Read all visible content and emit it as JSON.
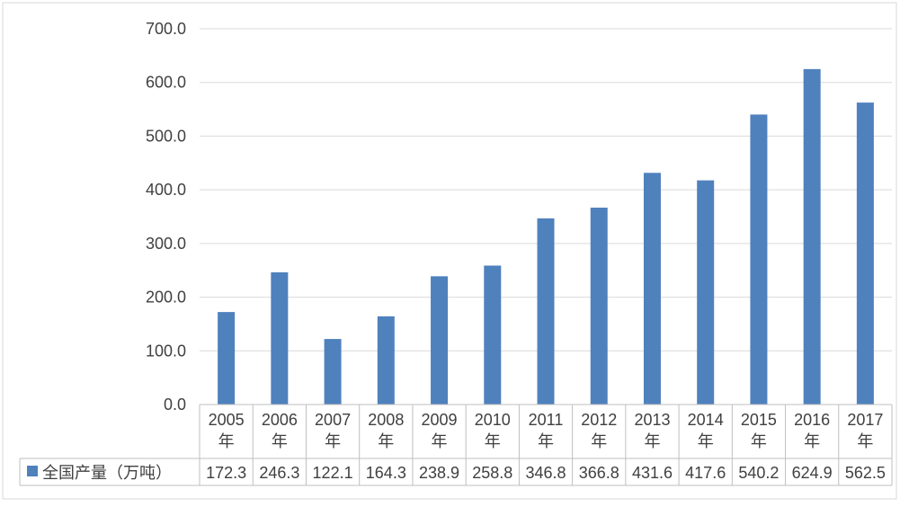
{
  "chart_data": {
    "type": "bar",
    "title": "",
    "xlabel": "",
    "ylabel": "",
    "categories": [
      "2005\n年",
      "2006\n年",
      "2007\n年",
      "2008\n年",
      "2009\n年",
      "2010\n年",
      "2011\n年",
      "2012\n年",
      "2013\n年",
      "2014\n年",
      "2015\n年",
      "2016\n年",
      "2017\n年"
    ],
    "series": [
      {
        "name": "全国产量（万吨）",
        "values": [
          172.3,
          246.3,
          122.1,
          164.3,
          238.9,
          258.8,
          346.8,
          366.8,
          431.6,
          417.6,
          540.2,
          624.9,
          562.5
        ],
        "value_labels": [
          "172.3",
          "246.3",
          "122.1",
          "164.3",
          "238.9",
          "258.8",
          "346.8",
          "366.8",
          "431.6",
          "417.6",
          "540.2",
          "624.9",
          "562.5"
        ],
        "color": "#4F81BD"
      }
    ],
    "ylim": [
      0,
      700
    ],
    "yticks": [
      "0.0",
      "100.0",
      "200.0",
      "300.0",
      "400.0",
      "500.0",
      "600.0",
      "700.0"
    ],
    "grid": true,
    "legend": "data-table-left",
    "data_table": true
  }
}
